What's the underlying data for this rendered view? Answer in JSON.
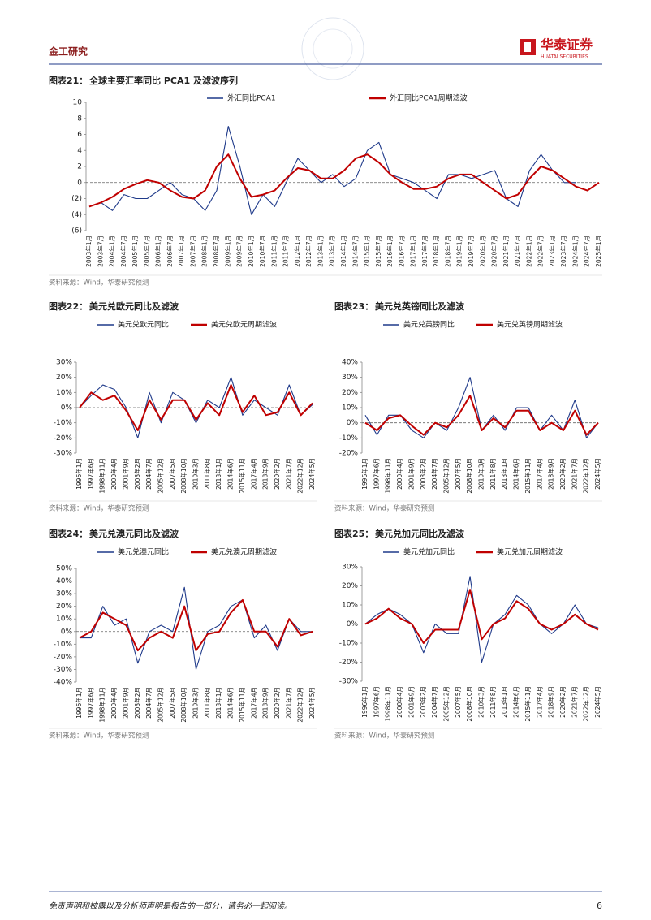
{
  "header": {
    "section": "金工研究",
    "logo_cn": "华泰证券",
    "logo_en": "HUATAI SECURITIES"
  },
  "chart_data": [
    {
      "type": "line",
      "label": "图表21：",
      "title": "全球主要汇率同比 PCA1 及滤波序列",
      "source": "资料来源：Wind，华泰研究预测",
      "categories": [
        "2003年1月",
        "2003年7月",
        "2004年1月",
        "2004年7月",
        "2005年1月",
        "2005年7月",
        "2006年1月",
        "2006年7月",
        "2007年1月",
        "2007年7月",
        "2008年1月",
        "2008年7月",
        "2009年1月",
        "2009年7月",
        "2010年1月",
        "2010年7月",
        "2011年1月",
        "2011年7月",
        "2012年1月",
        "2012年7月",
        "2013年1月",
        "2013年7月",
        "2014年1月",
        "2014年7月",
        "2015年1月",
        "2015年7月",
        "2016年1月",
        "2016年7月",
        "2017年1月",
        "2017年7月",
        "2018年1月",
        "2018年7月",
        "2019年1月",
        "2019年7月",
        "2020年1月",
        "2020年7月",
        "2021年1月",
        "2021年7月",
        "2022年1月",
        "2022年7月",
        "2023年1月",
        "2023年7月",
        "2024年1月",
        "2024年7月",
        "2025年1月"
      ],
      "ylim": [
        -6,
        10
      ],
      "yticks": [
        {
          "value": -6,
          "label": "(6)"
        },
        {
          "value": -4,
          "label": "(4)"
        },
        {
          "value": -2,
          "label": "(2)"
        },
        0,
        2,
        4,
        6,
        8,
        10
      ],
      "zero_line": true,
      "series": [
        {
          "name": "外汇同比PCA1",
          "color": "#1f3a8a",
          "values": [
            -3,
            -2.5,
            -3.5,
            -1.5,
            -2,
            -2,
            -1,
            0,
            -1.5,
            -2,
            -3.5,
            -1,
            7,
            2,
            -4,
            -1.5,
            -3,
            0,
            3,
            1.5,
            0,
            1,
            -0.5,
            0.5,
            4,
            5,
            1,
            0.5,
            0,
            -1,
            -2,
            1,
            1,
            0.5,
            1,
            1.5,
            -2,
            -3,
            1.5,
            3.5,
            1.5,
            0,
            0,
            null,
            null
          ]
        },
        {
          "name": "外汇同比PCA1周期滤波",
          "color": "#c00000",
          "values": [
            -3,
            -2.5,
            -1.8,
            -0.8,
            -0.2,
            0.3,
            0,
            -1,
            -1.8,
            -2,
            -1,
            2,
            3.5,
            0.5,
            -1.8,
            -1.5,
            -1,
            0.5,
            1.8,
            1.5,
            0.5,
            0.5,
            1.5,
            3,
            3.5,
            2.5,
            1,
            0,
            -0.8,
            -0.8,
            -0.5,
            0.5,
            1,
            1,
            0,
            -1,
            -2,
            -1.5,
            0.5,
            2,
            1.5,
            0.5,
            -0.5,
            -1,
            0
          ]
        }
      ]
    },
    {
      "type": "line",
      "label": "图表22：",
      "title": "美元兑欧元同比及滤波",
      "source": "资料来源：Wind，华泰研究预测",
      "categories": [
        "1996年1月",
        "1997年6月",
        "1998年11月",
        "2000年4月",
        "2001年9月",
        "2003年2月",
        "2004年7月",
        "2005年12月",
        "2007年5月",
        "2008年10月",
        "2010年3月",
        "2011年8月",
        "2013年1月",
        "2014年6月",
        "2015年11月",
        "2017年4月",
        "2018年9月",
        "2020年2月",
        "2021年7月",
        "2022年12月",
        "2024年5月"
      ],
      "ylim": [
        -30,
        30
      ],
      "yticks": [
        {
          "value": -30,
          "label": "-30%"
        },
        {
          "value": -20,
          "label": "-20%"
        },
        {
          "value": -10,
          "label": "-10%"
        },
        {
          "value": 0,
          "label": "0%"
        },
        {
          "value": 10,
          "label": "10%"
        },
        {
          "value": 20,
          "label": "20%"
        },
        {
          "value": 30,
          "label": "30%"
        }
      ],
      "zero_line": true,
      "series": [
        {
          "name": "美元兑欧元同比",
          "color": "#1f3a8a",
          "values": [
            0,
            8,
            15,
            12,
            0,
            -20,
            10,
            -10,
            10,
            5,
            -10,
            5,
            0,
            20,
            -5,
            5,
            0,
            -5,
            15,
            -5,
            2
          ]
        },
        {
          "name": "美元兑欧元周期滤波",
          "color": "#c00000",
          "values": [
            0,
            10,
            5,
            8,
            -2,
            -15,
            5,
            -8,
            5,
            5,
            -8,
            3,
            -5,
            15,
            -3,
            8,
            -5,
            -3,
            10,
            -5,
            3
          ]
        }
      ]
    },
    {
      "type": "line",
      "label": "图表23：",
      "title": "美元兑英镑同比及滤波",
      "source": "资料来源：Wind，华泰研究预测",
      "categories": [
        "1996年1月",
        "1997年6月",
        "1998年11月",
        "2000年4月",
        "2001年9月",
        "2003年2月",
        "2004年7月",
        "2005年12月",
        "2007年5月",
        "2008年10月",
        "2010年3月",
        "2011年8月",
        "2013年1月",
        "2014年6月",
        "2015年11月",
        "2017年4月",
        "2018年9月",
        "2020年2月",
        "2021年7月",
        "2022年12月",
        "2024年5月"
      ],
      "ylim": [
        -20,
        40
      ],
      "yticks": [
        {
          "value": -20,
          "label": "-20%"
        },
        {
          "value": -10,
          "label": "-10%"
        },
        {
          "value": 0,
          "label": "0%"
        },
        {
          "value": 10,
          "label": "10%"
        },
        {
          "value": 20,
          "label": "20%"
        },
        {
          "value": 30,
          "label": "30%"
        },
        {
          "value": 40,
          "label": "40%"
        }
      ],
      "zero_line": true,
      "series": [
        {
          "name": "美元兑英镑同比",
          "color": "#1f3a8a",
          "values": [
            5,
            -8,
            5,
            5,
            -5,
            -10,
            0,
            -5,
            10,
            30,
            -5,
            5,
            -5,
            10,
            10,
            -5,
            5,
            -5,
            15,
            -10,
            0
          ]
        },
        {
          "name": "美元兑英镑周期滤波",
          "color": "#c00000",
          "values": [
            0,
            -5,
            3,
            5,
            -2,
            -8,
            0,
            -3,
            5,
            18,
            -5,
            3,
            -3,
            8,
            8,
            -5,
            0,
            -5,
            8,
            -8,
            0
          ]
        }
      ]
    },
    {
      "type": "line",
      "label": "图表24：",
      "title": "美元兑澳元同比及滤波",
      "source": "资料来源：Wind，华泰研究预测",
      "categories": [
        "1996年1月",
        "1997年6月",
        "1998年11月",
        "2000年4月",
        "2001年9月",
        "2003年2月",
        "2004年7月",
        "2005年12月",
        "2007年5月",
        "2008年10月",
        "2010年3月",
        "2011年8月",
        "2013年1月",
        "2014年6月",
        "2015年11月",
        "2017年4月",
        "2018年9月",
        "2020年2月",
        "2021年7月",
        "2022年12月",
        "2024年5月"
      ],
      "ylim": [
        -40,
        50
      ],
      "yticks": [
        {
          "value": -40,
          "label": "-40%"
        },
        {
          "value": -30,
          "label": "-30%"
        },
        {
          "value": -20,
          "label": "-20%"
        },
        {
          "value": -10,
          "label": "-10%"
        },
        {
          "value": 0,
          "label": "0%"
        },
        {
          "value": 10,
          "label": "10%"
        },
        {
          "value": 20,
          "label": "20%"
        },
        {
          "value": 30,
          "label": "30%"
        },
        {
          "value": 40,
          "label": "40%"
        },
        {
          "value": 50,
          "label": "50%"
        }
      ],
      "zero_line": true,
      "series": [
        {
          "name": "美元兑澳元同比",
          "color": "#1f3a8a",
          "values": [
            -5,
            -5,
            20,
            5,
            10,
            -25,
            0,
            5,
            0,
            35,
            -30,
            0,
            5,
            20,
            25,
            -5,
            5,
            -15,
            10,
            0,
            0
          ]
        },
        {
          "name": "美元兑澳元周期滤波",
          "color": "#c00000",
          "values": [
            -5,
            0,
            15,
            10,
            5,
            -15,
            -5,
            0,
            -5,
            20,
            -15,
            -2,
            0,
            15,
            25,
            0,
            0,
            -12,
            10,
            -3,
            0
          ]
        }
      ]
    },
    {
      "type": "line",
      "label": "图表25：",
      "title": "美元兑加元同比及滤波",
      "source": "资料来源：Wind，华泰研究预测",
      "categories": [
        "1996年1月",
        "1997年6月",
        "1998年11月",
        "2000年4月",
        "2001年9月",
        "2003年2月",
        "2004年7月",
        "2005年12月",
        "2007年5月",
        "2008年10月",
        "2010年3月",
        "2011年8月",
        "2013年1月",
        "2014年6月",
        "2015年11月",
        "2017年4月",
        "2018年9月",
        "2020年2月",
        "2021年7月",
        "2022年12月",
        "2024年5月"
      ],
      "ylim": [
        -30,
        30
      ],
      "yticks": [
        {
          "value": -30,
          "label": "-30%"
        },
        {
          "value": -20,
          "label": "-20%"
        },
        {
          "value": -10,
          "label": "-10%"
        },
        {
          "value": 0,
          "label": "0%"
        },
        {
          "value": 10,
          "label": "10%"
        },
        {
          "value": 20,
          "label": "20%"
        },
        {
          "value": 30,
          "label": "30%"
        }
      ],
      "zero_line": true,
      "series": [
        {
          "name": "美元兑加元同比",
          "color": "#1f3a8a",
          "values": [
            0,
            5,
            8,
            5,
            0,
            -15,
            0,
            -5,
            -5,
            25,
            -20,
            0,
            5,
            15,
            10,
            0,
            -5,
            0,
            10,
            0,
            -2
          ]
        },
        {
          "name": "美元兑加元周期滤波",
          "color": "#c00000",
          "values": [
            0,
            3,
            8,
            3,
            0,
            -10,
            -3,
            -3,
            -3,
            18,
            -8,
            0,
            3,
            12,
            8,
            0,
            -3,
            0,
            5,
            0,
            -3
          ]
        }
      ]
    }
  ],
  "footer": {
    "disclaimer": "免责声明和披露以及分析师声明是报告的一部分，请务必一起阅读。",
    "page": 6
  }
}
